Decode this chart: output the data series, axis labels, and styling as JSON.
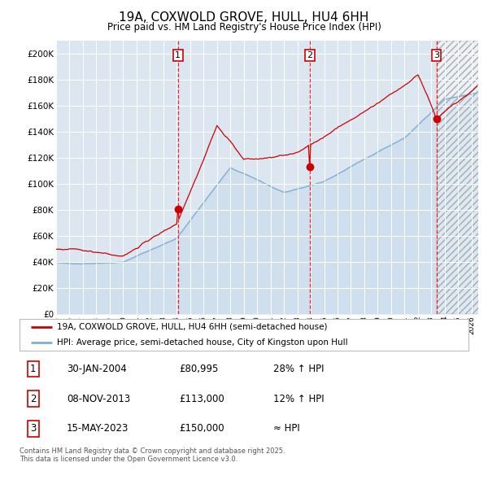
{
  "title": "19A, COXWOLD GROVE, HULL, HU4 6HH",
  "subtitle": "Price paid vs. HM Land Registry's House Price Index (HPI)",
  "background_color": "#dce6f1",
  "red_line_color": "#cc0000",
  "blue_line_color": "#7eb0d4",
  "ylim": [
    0,
    210000
  ],
  "yticks": [
    0,
    20000,
    40000,
    60000,
    80000,
    100000,
    120000,
    140000,
    160000,
    180000,
    200000
  ],
  "ytick_labels": [
    "£0",
    "£20K",
    "£40K",
    "£60K",
    "£80K",
    "£100K",
    "£120K",
    "£140K",
    "£160K",
    "£180K",
    "£200K"
  ],
  "xmin_year": 1995.0,
  "xmax_year": 2026.5,
  "xtick_years": [
    1995,
    1996,
    1997,
    1998,
    1999,
    2000,
    2001,
    2002,
    2003,
    2004,
    2005,
    2006,
    2007,
    2008,
    2009,
    2010,
    2011,
    2012,
    2013,
    2014,
    2015,
    2016,
    2017,
    2018,
    2019,
    2020,
    2021,
    2022,
    2023,
    2024,
    2025,
    2026
  ],
  "sale_year_floats": [
    2004.083,
    2013.917,
    2023.375
  ],
  "sale_prices": [
    80995,
    113000,
    150000
  ],
  "sale_labels": [
    "1",
    "2",
    "3"
  ],
  "legend_line1": "19A, COXWOLD GROVE, HULL, HU4 6HH (semi-detached house)",
  "legend_line2": "HPI: Average price, semi-detached house, City of Kingston upon Hull",
  "table_rows": [
    [
      "1",
      "30-JAN-2004",
      "£80,995",
      "28% ↑ HPI"
    ],
    [
      "2",
      "08-NOV-2013",
      "£113,000",
      "12% ↑ HPI"
    ],
    [
      "3",
      "15-MAY-2023",
      "£150,000",
      "≈ HPI"
    ]
  ],
  "footer": "Contains HM Land Registry data © Crown copyright and database right 2025.\nThis data is licensed under the Open Government Licence v3.0."
}
